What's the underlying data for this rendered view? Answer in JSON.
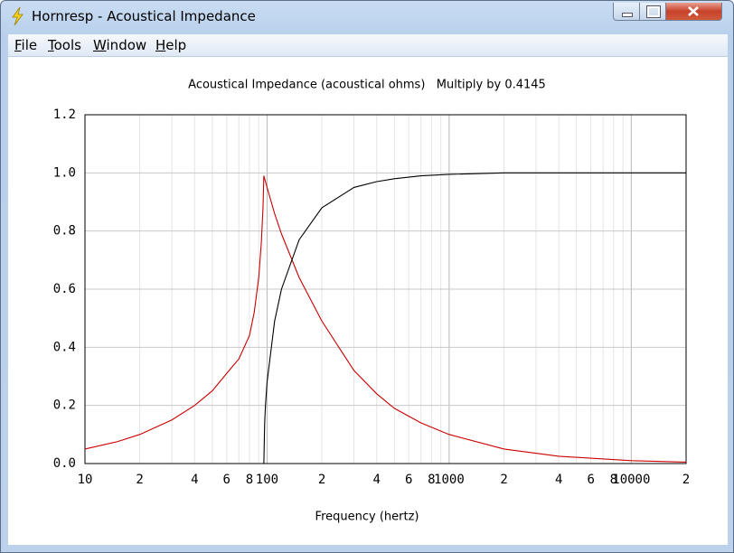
{
  "window": {
    "title": "Hornresp - Acoustical Impedance",
    "menu": [
      "File",
      "Tools",
      "Window",
      "Help"
    ]
  },
  "chart_data": {
    "type": "line",
    "title": "Acoustical Impedance (acoustical ohms)   Multiply by 0.4145",
    "x_label": "Frequency (hertz)",
    "x_scale": "log",
    "x": [
      10,
      15,
      20,
      30,
      40,
      50,
      60,
      70,
      80,
      85,
      90,
      93,
      95,
      96,
      97,
      98,
      100,
      110,
      120,
      150,
      200,
      300,
      400,
      500,
      700,
      1000,
      2000,
      4000,
      10000,
      20000
    ],
    "series": [
      {
        "color": "#cc0000",
        "values": [
          0.05,
          0.075,
          0.1,
          0.15,
          0.2,
          0.25,
          0.31,
          0.36,
          0.44,
          0.52,
          0.64,
          0.76,
          0.88,
          0.99,
          0.98,
          0.97,
          0.95,
          0.86,
          0.79,
          0.64,
          0.49,
          0.32,
          0.24,
          0.19,
          0.14,
          0.1,
          0.05,
          0.025,
          0.01,
          0.005
        ]
      },
      {
        "color": "#000000",
        "values": [
          null,
          null,
          null,
          null,
          null,
          null,
          null,
          null,
          null,
          null,
          null,
          null,
          null,
          0,
          0.14,
          0.2,
          0.28,
          0.49,
          0.6,
          0.77,
          0.88,
          0.95,
          0.97,
          0.98,
          0.99,
          0.995,
          1.0,
          1.0,
          1.0,
          1.0
        ]
      }
    ],
    "xlim": [
      10,
      20000
    ],
    "ylim": [
      0,
      1.2
    ],
    "xticks": [
      10,
      {
        "value": 20,
        "label": "2"
      },
      {
        "value": 40,
        "label": "4"
      },
      {
        "value": 60,
        "label": "6"
      },
      {
        "value": 80,
        "label": "8"
      },
      100,
      {
        "value": 200,
        "label": "2"
      },
      {
        "value": 400,
        "label": "4"
      },
      {
        "value": 600,
        "label": "6"
      },
      {
        "value": 800,
        "label": "8"
      },
      1000,
      {
        "value": 2000,
        "label": "2"
      },
      {
        "value": 4000,
        "label": "4"
      },
      {
        "value": 6000,
        "label": "6"
      },
      {
        "value": 8000,
        "label": "8"
      },
      10000,
      {
        "value": 20000,
        "label": "2"
      }
    ],
    "x_minor_grid": [
      30,
      50,
      70,
      90,
      300,
      500,
      700,
      900,
      3000,
      5000,
      7000,
      9000
    ],
    "yticks": [
      {
        "value": 0,
        "label": "0.0"
      },
      {
        "value": 0.2,
        "label": "0.2"
      },
      {
        "value": 0.4,
        "label": "0.4"
      },
      {
        "value": 0.6,
        "label": "0.6"
      },
      {
        "value": 0.8,
        "label": "0.8"
      },
      {
        "value": 1.0,
        "label": "1.0"
      },
      {
        "value": 1.2,
        "label": "1.2"
      }
    ],
    "grid": true
  }
}
